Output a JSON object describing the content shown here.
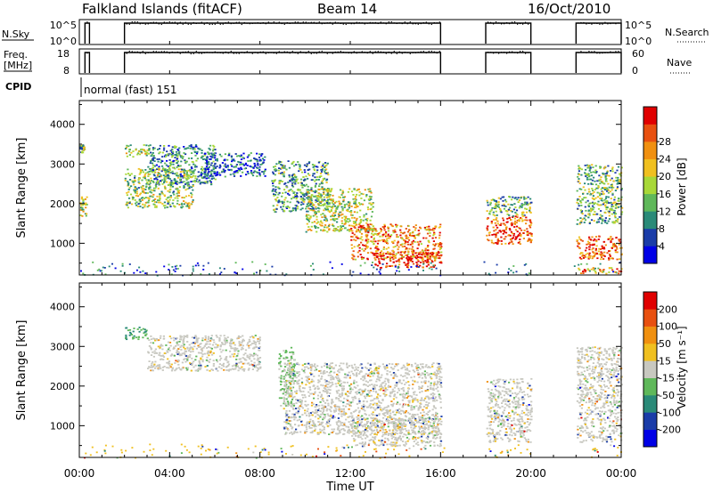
{
  "header": {
    "title": "Falkland Islands (fitACF)",
    "beam": "Beam 14",
    "date": "16/Oct/2010"
  },
  "cpid": {
    "label": "CPID",
    "text": "normal (fast) 151"
  },
  "chart_data": [
    {
      "type": "line",
      "name": "nsky-nsearch",
      "left_label": "N.Sky",
      "right_label": "N.Search",
      "left_ticks": [
        "10^5",
        "10^0"
      ],
      "right_ticks": [
        "10^5",
        "10^0"
      ],
      "segments_hours": [
        [
          0.25,
          0.45
        ],
        [
          2.0,
          16.0
        ],
        [
          18.0,
          20.0
        ],
        [
          22.0,
          24.0
        ]
      ]
    },
    {
      "type": "line",
      "name": "freq-nave",
      "left_label_lines": [
        "Freq.",
        "[MHz]"
      ],
      "left_ticks": [
        "18",
        "8"
      ],
      "right_label": "Nave",
      "right_ticks": [
        "60",
        "0"
      ],
      "segments_hours": [
        [
          0.25,
          0.45
        ],
        [
          2.0,
          16.0
        ],
        [
          18.0,
          20.0
        ],
        [
          22.0,
          24.0
        ]
      ]
    },
    {
      "type": "heatmap",
      "name": "power",
      "ylabel": "Slant Range [km]",
      "ylim": [
        200,
        4600
      ],
      "yticks": [
        1000,
        2000,
        3000,
        4000
      ],
      "xlim": [
        0,
        24
      ],
      "colorbar": {
        "label": "Power [dB]",
        "ticks": [
          "4",
          "8",
          "12",
          "16",
          "20",
          "24",
          "28"
        ],
        "colors": [
          "#0000e6",
          "#1a3ca8",
          "#2a8a78",
          "#5fb85a",
          "#a8d838",
          "#f0c020",
          "#f09010",
          "#e85010",
          "#e00000"
        ]
      },
      "regions": [
        {
          "t": [
            0.0,
            0.3
          ],
          "r": [
            1700,
            2200
          ],
          "level": 0.5
        },
        {
          "t": [
            0.0,
            0.2
          ],
          "r": [
            3300,
            3500
          ],
          "level": 0.4
        },
        {
          "t": [
            2.0,
            5.0
          ],
          "r": [
            1900,
            2900
          ],
          "level": 0.45
        },
        {
          "t": [
            2.0,
            3.0
          ],
          "r": [
            3200,
            3500
          ],
          "level": 0.5
        },
        {
          "t": [
            3.0,
            6.0
          ],
          "r": [
            2500,
            3500
          ],
          "level": 0.3
        },
        {
          "t": [
            5.5,
            8.2
          ],
          "r": [
            2700,
            3300
          ],
          "level": 0.2
        },
        {
          "t": [
            8.5,
            11.0
          ],
          "r": [
            1800,
            3100
          ],
          "level": 0.35
        },
        {
          "t": [
            10.0,
            13.0
          ],
          "r": [
            1300,
            2400
          ],
          "level": 0.5
        },
        {
          "t": [
            12.0,
            16.0
          ],
          "r": [
            600,
            1500
          ],
          "level": 0.75
        },
        {
          "t": [
            13.0,
            16.0
          ],
          "r": [
            400,
            800
          ],
          "level": 0.9
        },
        {
          "t": [
            18.0,
            20.0
          ],
          "r": [
            1000,
            1700
          ],
          "level": 0.85
        },
        {
          "t": [
            18.0,
            20.0
          ],
          "r": [
            1700,
            2200
          ],
          "level": 0.4
        },
        {
          "t": [
            22.0,
            24.0
          ],
          "r": [
            600,
            1200
          ],
          "level": 0.8
        },
        {
          "t": [
            22.0,
            24.0
          ],
          "r": [
            1500,
            3000
          ],
          "level": 0.4
        },
        {
          "t": [
            22.0,
            24.0
          ],
          "r": [
            250,
            400
          ],
          "level": 0.7
        }
      ]
    },
    {
      "type": "heatmap",
      "name": "velocity",
      "ylabel": "Slant Range [km]",
      "ylim": [
        200,
        4600
      ],
      "yticks": [
        1000,
        2000,
        3000,
        4000
      ],
      "xlim": [
        0,
        24
      ],
      "xlabel": "Time UT",
      "xticks": [
        "00:00",
        "04:00",
        "08:00",
        "12:00",
        "16:00",
        "20:00",
        "00:00"
      ],
      "colorbar": {
        "label": "Velocity [m s⁻¹]",
        "ticks": [
          "200",
          "100",
          "50",
          "15",
          "-15",
          "-50",
          "-100",
          "-200"
        ],
        "colors": [
          "#0000e6",
          "#1a3ca8",
          "#2a8a78",
          "#5fb85a",
          "#c8c8c0",
          "#f0c020",
          "#f09010",
          "#e85010",
          "#e00000"
        ]
      },
      "regions": [
        {
          "t": [
            2.0,
            3.0
          ],
          "r": [
            3200,
            3500
          ],
          "level": 0.2
        },
        {
          "t": [
            3.0,
            8.0
          ],
          "r": [
            2400,
            3300
          ],
          "level": 0.5
        },
        {
          "t": [
            8.8,
            9.5
          ],
          "r": [
            1500,
            3000
          ],
          "level": 0.35
        },
        {
          "t": [
            9.0,
            16.0
          ],
          "r": [
            800,
            2600
          ],
          "level": 0.5
        },
        {
          "t": [
            12.0,
            16.0
          ],
          "r": [
            500,
            1200
          ],
          "level": 0.5
        },
        {
          "t": [
            18.0,
            20.0
          ],
          "r": [
            600,
            2200
          ],
          "level": 0.5
        },
        {
          "t": [
            22.0,
            24.0
          ],
          "r": [
            600,
            3000
          ],
          "level": 0.5
        }
      ]
    }
  ]
}
